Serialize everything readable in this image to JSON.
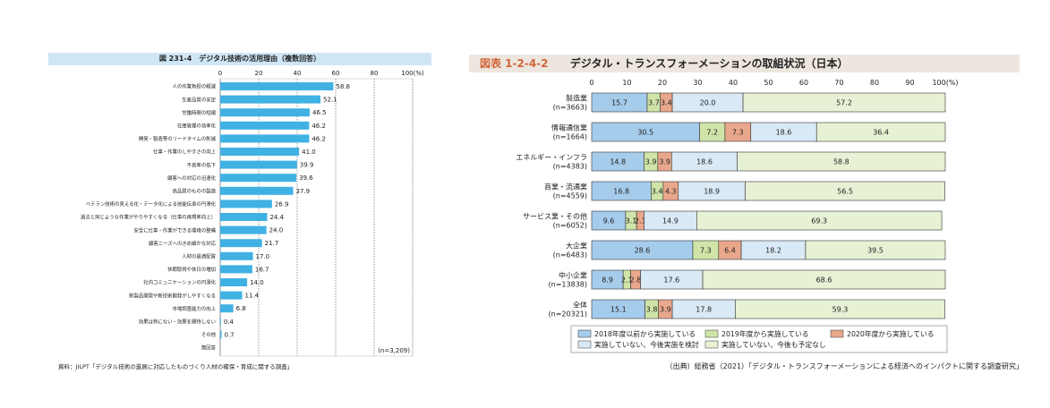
{
  "left": {
    "title": "図 231-4　デジタル技術の活用理由（複数回答）",
    "source": "資料：JILPT「デジタル技術の進展に対応したものづくり人材の確保・育成に関する調査」",
    "n_label": "(n=3,209)"
  },
  "right": {
    "tag": "図表 1-2-4-2",
    "title": "デジタル・トランスフォーメーションの取組状況（日本）",
    "source": "（出典）総務省（2021）「デジタル・トランスフォーメーションによる経済へのインパクトに関する調査研究」"
  },
  "chart_data": [
    {
      "type": "bar",
      "orientation": "horizontal",
      "title": "図 231-4　デジタル技術の活用理由（複数回答）",
      "xlim": [
        0,
        100
      ],
      "x_ticks": [
        "0",
        "20",
        "40",
        "60",
        "80",
        "100(%)"
      ],
      "categories": [
        "人の作業負担の軽減",
        "生産品質の安定",
        "労働時間の短縮",
        "在庫管理の効率化",
        "開発・製造等のリードタイムの削減",
        "仕事・作業のしやすさの向上",
        "不良率の低下",
        "顧客への対応の迅速化",
        "高品質のものの製造",
        "ベテラン技術の見える化・データ化による技能伝承の円滑化",
        "過去と同じような作業がやりやすくなる（仕事の再現率向上）",
        "安全に仕事・作業ができる環境の整備",
        "顧客ニーズへのきめ細かな対応",
        "人材の最適配置",
        "休暇取得や休日の増加",
        "社内コミュニケーションの円滑化",
        "新製品開発や新技術開発がしやすくなる",
        "市場調査能力の向上",
        "効果は特にない・効果を期待しない",
        "その他",
        "無回答"
      ],
      "values": [
        58.8,
        52.1,
        46.5,
        46.2,
        46.2,
        41.0,
        39.9,
        39.6,
        37.9,
        26.9,
        24.4,
        24.0,
        21.7,
        17.0,
        16.7,
        14.0,
        11.4,
        6.8,
        0.4,
        0.7,
        0.0
      ],
      "value_labels": [
        "58.8",
        "52.1",
        "46.5",
        "46.2",
        "46.2",
        "41.0",
        "39.9",
        "39.6",
        "37.9",
        "26.9",
        "24.4",
        "24.0",
        "21.7",
        "17.0",
        "16.7",
        "14.0",
        "11.4",
        "6.8",
        "0.4",
        "0.7",
        ""
      ],
      "bar_color": "#3fb1e3",
      "grid": true
    },
    {
      "type": "bar",
      "orientation": "horizontal",
      "stacked": true,
      "title": "デジタル・トランスフォーメーションの取組状況（日本）",
      "xlim": [
        0,
        100
      ],
      "x_ticks": [
        "0",
        "10",
        "20",
        "30",
        "40",
        "50",
        "60",
        "70",
        "80",
        "90",
        "100(%)"
      ],
      "categories": [
        [
          "製造業",
          "(n=3663)"
        ],
        [
          "情報通信業",
          "(n=1664)"
        ],
        [
          "エネルギー・インフラ",
          "(n=4383)"
        ],
        [
          "商業・流通業",
          "(n=4559)"
        ],
        [
          "サービス業・その他",
          "(n=6052)"
        ],
        [
          "大企業",
          "(n=6483)"
        ],
        [
          "中小企業",
          "(n=13838)"
        ],
        [
          "全体",
          "(n=20321)"
        ]
      ],
      "series": [
        {
          "name": "2018年度以前から実施している",
          "color": "#a6ccec",
          "values": [
            15.7,
            30.5,
            14.8,
            16.8,
            9.6,
            28.6,
            8.9,
            15.1
          ],
          "labels": [
            "15.7",
            "30.5",
            "14.8",
            "16.8",
            "9.6",
            "28.6",
            "8.9",
            "15.1"
          ]
        },
        {
          "name": "2019年度から実施している",
          "color": "#cfe4a8",
          "values": [
            3.7,
            7.2,
            3.9,
            3.4,
            3.1,
            7.3,
            2.1,
            3.8
          ],
          "labels": [
            "3.7",
            "7.2",
            "3.9",
            "3.4",
            "3.1",
            "7.3",
            "2.1",
            "3.8"
          ]
        },
        {
          "name": "2020年度から実施している",
          "color": "#e9a78c",
          "values": [
            3.4,
            7.3,
            3.9,
            4.3,
            2.1,
            6.4,
            2.8,
            3.9
          ],
          "labels": [
            "3.4",
            "7.3",
            "3.9",
            "4.3",
            "2.1",
            "6.4",
            "2.8",
            "3.9"
          ]
        },
        {
          "name": "実施していない、今後実施を検討",
          "color": "#d9e9f6",
          "values": [
            20.0,
            18.6,
            18.6,
            18.9,
            14.9,
            18.2,
            17.6,
            17.8
          ],
          "labels": [
            "20.0",
            "18.6",
            "18.6",
            "18.9",
            "14.9",
            "18.2",
            "17.6",
            "17.8"
          ]
        },
        {
          "name": "実施していない、今後も予定なし",
          "color": "#e7f1d4",
          "values": [
            57.2,
            36.4,
            58.8,
            56.5,
            69.3,
            39.5,
            68.6,
            59.3
          ],
          "labels": [
            "57.2",
            "36.4",
            "58.8",
            "56.5",
            "69.3",
            "39.5",
            "68.6",
            "59.3"
          ]
        }
      ],
      "legend_position": "bottom"
    }
  ]
}
